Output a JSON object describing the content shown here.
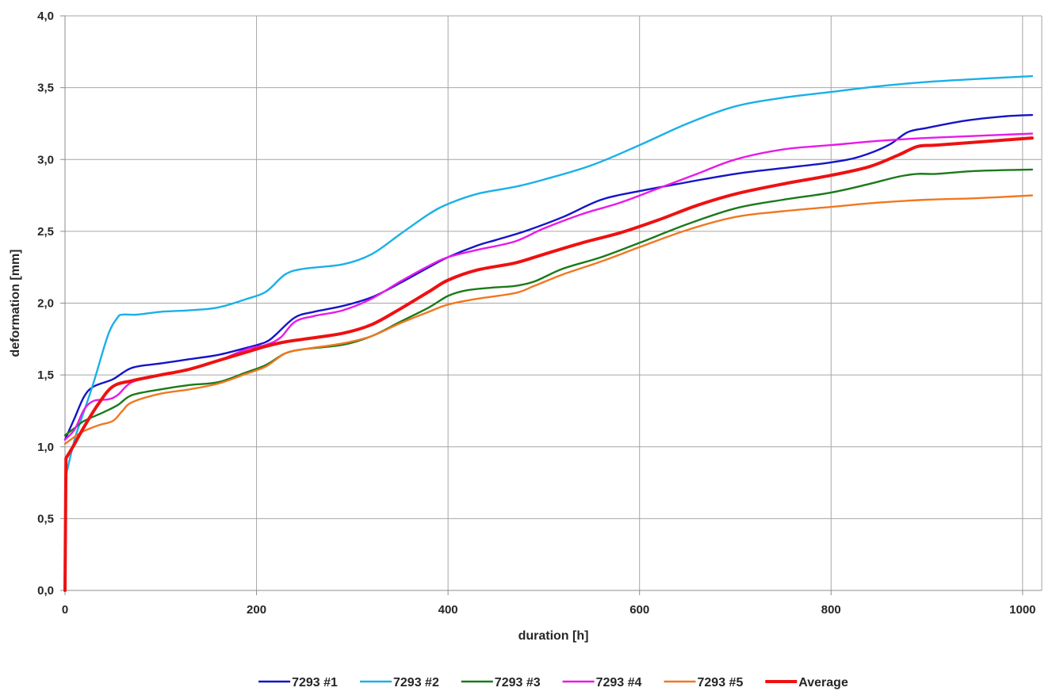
{
  "chart_data": {
    "type": "line",
    "title": "",
    "xlabel": "duration  [h]",
    "ylabel": "deformation [mm]",
    "xlim": [
      0,
      1020
    ],
    "ylim": [
      0,
      4.0
    ],
    "x_ticks": [
      0,
      200,
      400,
      600,
      800,
      1000
    ],
    "x_tick_labels": [
      "0",
      "200",
      "400",
      "600",
      "800",
      "1000"
    ],
    "y_ticks": [
      0,
      0.5,
      1.0,
      1.5,
      2.0,
      2.5,
      3.0,
      3.5,
      4.0
    ],
    "y_tick_labels": [
      "0,0",
      "0,5",
      "1,0",
      "1,5",
      "2,0",
      "2,5",
      "3,0",
      "3,5",
      "4,0"
    ],
    "grid": true,
    "legend_position": "bottom",
    "series": [
      {
        "name": "7293 #1",
        "color": "#1414c8",
        "points": [
          [
            0,
            1.05
          ],
          [
            10,
            1.2
          ],
          [
            20,
            1.35
          ],
          [
            30,
            1.42
          ],
          [
            50,
            1.47
          ],
          [
            70,
            1.55
          ],
          [
            100,
            1.58
          ],
          [
            130,
            1.61
          ],
          [
            160,
            1.64
          ],
          [
            190,
            1.69
          ],
          [
            210,
            1.73
          ],
          [
            220,
            1.78
          ],
          [
            240,
            1.9
          ],
          [
            260,
            1.94
          ],
          [
            290,
            1.98
          ],
          [
            320,
            2.04
          ],
          [
            350,
            2.14
          ],
          [
            380,
            2.25
          ],
          [
            400,
            2.32
          ],
          [
            430,
            2.4
          ],
          [
            450,
            2.44
          ],
          [
            480,
            2.5
          ],
          [
            520,
            2.6
          ],
          [
            560,
            2.72
          ],
          [
            600,
            2.78
          ],
          [
            640,
            2.83
          ],
          [
            700,
            2.9
          ],
          [
            750,
            2.94
          ],
          [
            800,
            2.98
          ],
          [
            830,
            3.02
          ],
          [
            860,
            3.1
          ],
          [
            880,
            3.19
          ],
          [
            900,
            3.22
          ],
          [
            940,
            3.27
          ],
          [
            980,
            3.3
          ],
          [
            1010,
            3.31
          ]
        ]
      },
      {
        "name": "7293 #2",
        "color": "#1ab0e8",
        "points": [
          [
            0,
            0.77
          ],
          [
            10,
            1.05
          ],
          [
            20,
            1.25
          ],
          [
            30,
            1.45
          ],
          [
            45,
            1.78
          ],
          [
            55,
            1.9
          ],
          [
            60,
            1.92
          ],
          [
            75,
            1.92
          ],
          [
            100,
            1.94
          ],
          [
            130,
            1.95
          ],
          [
            160,
            1.97
          ],
          [
            190,
            2.03
          ],
          [
            210,
            2.08
          ],
          [
            230,
            2.2
          ],
          [
            250,
            2.24
          ],
          [
            290,
            2.27
          ],
          [
            320,
            2.34
          ],
          [
            350,
            2.48
          ],
          [
            380,
            2.62
          ],
          [
            400,
            2.69
          ],
          [
            430,
            2.76
          ],
          [
            470,
            2.81
          ],
          [
            500,
            2.86
          ],
          [
            550,
            2.96
          ],
          [
            600,
            3.1
          ],
          [
            650,
            3.25
          ],
          [
            700,
            3.37
          ],
          [
            750,
            3.43
          ],
          [
            800,
            3.47
          ],
          [
            850,
            3.51
          ],
          [
            900,
            3.54
          ],
          [
            950,
            3.56
          ],
          [
            1010,
            3.58
          ]
        ]
      },
      {
        "name": "7293 #3",
        "color": "#1a7a1a",
        "points": [
          [
            0,
            1.08
          ],
          [
            10,
            1.13
          ],
          [
            20,
            1.18
          ],
          [
            40,
            1.24
          ],
          [
            55,
            1.29
          ],
          [
            70,
            1.36
          ],
          [
            100,
            1.4
          ],
          [
            130,
            1.43
          ],
          [
            160,
            1.45
          ],
          [
            190,
            1.52
          ],
          [
            210,
            1.57
          ],
          [
            230,
            1.65
          ],
          [
            250,
            1.68
          ],
          [
            290,
            1.71
          ],
          [
            320,
            1.77
          ],
          [
            350,
            1.87
          ],
          [
            380,
            1.97
          ],
          [
            400,
            2.05
          ],
          [
            420,
            2.09
          ],
          [
            450,
            2.11
          ],
          [
            470,
            2.12
          ],
          [
            490,
            2.15
          ],
          [
            520,
            2.24
          ],
          [
            560,
            2.32
          ],
          [
            600,
            2.42
          ],
          [
            650,
            2.55
          ],
          [
            700,
            2.66
          ],
          [
            750,
            2.72
          ],
          [
            800,
            2.77
          ],
          [
            840,
            2.83
          ],
          [
            870,
            2.88
          ],
          [
            890,
            2.9
          ],
          [
            910,
            2.9
          ],
          [
            950,
            2.92
          ],
          [
            1010,
            2.93
          ]
        ]
      },
      {
        "name": "7293 #4",
        "color": "#e81ae8",
        "points": [
          [
            0,
            1.05
          ],
          [
            10,
            1.12
          ],
          [
            20,
            1.26
          ],
          [
            30,
            1.32
          ],
          [
            45,
            1.33
          ],
          [
            55,
            1.36
          ],
          [
            70,
            1.45
          ],
          [
            100,
            1.5
          ],
          [
            130,
            1.54
          ],
          [
            160,
            1.6
          ],
          [
            190,
            1.68
          ],
          [
            210,
            1.71
          ],
          [
            225,
            1.76
          ],
          [
            240,
            1.87
          ],
          [
            260,
            1.91
          ],
          [
            290,
            1.95
          ],
          [
            320,
            2.03
          ],
          [
            350,
            2.15
          ],
          [
            380,
            2.26
          ],
          [
            400,
            2.32
          ],
          [
            430,
            2.37
          ],
          [
            470,
            2.43
          ],
          [
            500,
            2.52
          ],
          [
            540,
            2.62
          ],
          [
            580,
            2.7
          ],
          [
            620,
            2.8
          ],
          [
            660,
            2.9
          ],
          [
            700,
            3.0
          ],
          [
            750,
            3.07
          ],
          [
            800,
            3.1
          ],
          [
            850,
            3.13
          ],
          [
            900,
            3.15
          ],
          [
            1010,
            3.18
          ]
        ]
      },
      {
        "name": "7293 #5",
        "color": "#f07820",
        "points": [
          [
            0,
            1.02
          ],
          [
            10,
            1.07
          ],
          [
            20,
            1.11
          ],
          [
            35,
            1.15
          ],
          [
            50,
            1.18
          ],
          [
            60,
            1.25
          ],
          [
            70,
            1.31
          ],
          [
            100,
            1.37
          ],
          [
            130,
            1.4
          ],
          [
            160,
            1.44
          ],
          [
            190,
            1.51
          ],
          [
            210,
            1.56
          ],
          [
            230,
            1.65
          ],
          [
            250,
            1.68
          ],
          [
            290,
            1.72
          ],
          [
            320,
            1.77
          ],
          [
            350,
            1.86
          ],
          [
            380,
            1.94
          ],
          [
            400,
            1.99
          ],
          [
            430,
            2.03
          ],
          [
            470,
            2.07
          ],
          [
            490,
            2.12
          ],
          [
            520,
            2.2
          ],
          [
            560,
            2.29
          ],
          [
            600,
            2.39
          ],
          [
            650,
            2.51
          ],
          [
            700,
            2.6
          ],
          [
            750,
            2.64
          ],
          [
            800,
            2.67
          ],
          [
            850,
            2.7
          ],
          [
            900,
            2.72
          ],
          [
            950,
            2.73
          ],
          [
            1010,
            2.75
          ]
        ]
      },
      {
        "name": "Average",
        "color": "#ee1111",
        "bold": true,
        "points": [
          [
            0,
            0.0
          ],
          [
            1,
            0.92
          ],
          [
            10,
            1.02
          ],
          [
            20,
            1.14
          ],
          [
            35,
            1.3
          ],
          [
            50,
            1.42
          ],
          [
            70,
            1.46
          ],
          [
            100,
            1.5
          ],
          [
            130,
            1.54
          ],
          [
            160,
            1.6
          ],
          [
            190,
            1.66
          ],
          [
            210,
            1.7
          ],
          [
            230,
            1.73
          ],
          [
            250,
            1.75
          ],
          [
            290,
            1.79
          ],
          [
            320,
            1.85
          ],
          [
            350,
            1.96
          ],
          [
            380,
            2.08
          ],
          [
            400,
            2.16
          ],
          [
            430,
            2.23
          ],
          [
            470,
            2.28
          ],
          [
            500,
            2.34
          ],
          [
            540,
            2.42
          ],
          [
            580,
            2.49
          ],
          [
            620,
            2.58
          ],
          [
            660,
            2.68
          ],
          [
            700,
            2.76
          ],
          [
            750,
            2.83
          ],
          [
            800,
            2.89
          ],
          [
            840,
            2.95
          ],
          [
            870,
            3.03
          ],
          [
            890,
            3.09
          ],
          [
            910,
            3.1
          ],
          [
            950,
            3.12
          ],
          [
            1010,
            3.15
          ]
        ]
      }
    ]
  }
}
